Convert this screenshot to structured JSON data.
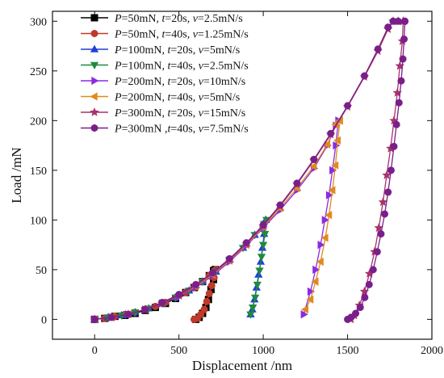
{
  "chart_data": {
    "type": "scatter",
    "xlabel": "Displacement /nm",
    "ylabel": "Load /mN",
    "xlim": [
      -250,
      2000
    ],
    "ylim": [
      -20,
      310
    ],
    "xticks": [
      0,
      500,
      1000,
      1500,
      2000
    ],
    "yticks": [
      0,
      50,
      100,
      150,
      200,
      250,
      300
    ],
    "xtick_labels": [
      "0",
      "500",
      "1000",
      "1500",
      "2000"
    ],
    "ytick_labels": [
      "0",
      "50",
      "100",
      "150",
      "200",
      "250",
      "300"
    ],
    "grid": false,
    "legend_position": "top-left",
    "series": [
      {
        "legend": [
          {
            "t": "P",
            "i": true
          },
          {
            "t": "=50mN,  ",
            "i": false
          },
          {
            "t": "t",
            "i": true
          },
          {
            "t": "=20s,  ",
            "i": false
          },
          {
            "t": "v",
            "i": true
          },
          {
            "t": "=2.5mN/s",
            "i": false
          }
        ],
        "color": "#000000",
        "marker": "square",
        "loading": [
          [
            0,
            0
          ],
          [
            60,
            1
          ],
          [
            120,
            3
          ],
          [
            180,
            4
          ],
          [
            240,
            6
          ],
          [
            300,
            9
          ],
          [
            360,
            12
          ],
          [
            420,
            16
          ],
          [
            480,
            21
          ],
          [
            540,
            27
          ],
          [
            590,
            32
          ],
          [
            640,
            38
          ],
          [
            680,
            44
          ],
          [
            705,
            49
          ],
          [
            715,
            50
          ]
        ],
        "unloading": [
          [
            715,
            50
          ],
          [
            705,
            40
          ],
          [
            690,
            30
          ],
          [
            675,
            20
          ],
          [
            660,
            12
          ],
          [
            640,
            6
          ],
          [
            620,
            2
          ],
          [
            600,
            0
          ]
        ]
      },
      {
        "legend": [
          {
            "t": "P",
            "i": true
          },
          {
            "t": "=50mN,  ",
            "i": false
          },
          {
            "t": "t",
            "i": true
          },
          {
            "t": "=40s,  ",
            "i": false
          },
          {
            "t": "v",
            "i": true
          },
          {
            "t": "=1.25mN/s",
            "i": false
          }
        ],
        "color": "#c0392b",
        "marker": "circle",
        "loading": [
          [
            0,
            0
          ],
          [
            60,
            1
          ],
          [
            120,
            3
          ],
          [
            180,
            5
          ],
          [
            240,
            7
          ],
          [
            300,
            10
          ],
          [
            360,
            13
          ],
          [
            420,
            17
          ],
          [
            480,
            22
          ],
          [
            540,
            27
          ],
          [
            590,
            32
          ],
          [
            640,
            38
          ],
          [
            680,
            44
          ],
          [
            710,
            49
          ],
          [
            720,
            50
          ]
        ],
        "unloading": [
          [
            720,
            50
          ],
          [
            708,
            42
          ],
          [
            694,
            34
          ],
          [
            680,
            26
          ],
          [
            665,
            18
          ],
          [
            650,
            10
          ],
          [
            630,
            5
          ],
          [
            610,
            1
          ],
          [
            590,
            0
          ]
        ]
      },
      {
        "legend": [
          {
            "t": "P",
            "i": true
          },
          {
            "t": "=100mN, ",
            "i": false
          },
          {
            "t": "t",
            "i": true
          },
          {
            "t": "=20s, ",
            "i": false
          },
          {
            "t": "v",
            "i": true
          },
          {
            "t": "=5mN/s",
            "i": false
          }
        ],
        "color": "#1f3fd6",
        "marker": "triangle-up",
        "loading": [
          [
            0,
            0
          ],
          [
            80,
            2
          ],
          [
            160,
            4
          ],
          [
            240,
            7
          ],
          [
            320,
            11
          ],
          [
            400,
            16
          ],
          [
            480,
            22
          ],
          [
            560,
            29
          ],
          [
            640,
            38
          ],
          [
            720,
            48
          ],
          [
            800,
            60
          ],
          [
            880,
            72
          ],
          [
            950,
            85
          ],
          [
            1000,
            96
          ],
          [
            1015,
            100
          ]
        ],
        "unloading": [
          [
            1015,
            100
          ],
          [
            1005,
            86
          ],
          [
            995,
            72
          ],
          [
            985,
            58
          ],
          [
            972,
            45
          ],
          [
            960,
            32
          ],
          [
            948,
            20
          ],
          [
            935,
            10
          ],
          [
            925,
            5
          ]
        ]
      },
      {
        "legend": [
          {
            "t": "P",
            "i": true
          },
          {
            "t": "=100mN, ",
            "i": false
          },
          {
            "t": "t",
            "i": true
          },
          {
            "t": "=40s, ",
            "i": false
          },
          {
            "t": "v",
            "i": true
          },
          {
            "t": "=2.5mN/s",
            "i": false
          }
        ],
        "color": "#1e8a3e",
        "marker": "triangle-down",
        "loading": [
          [
            0,
            0
          ],
          [
            80,
            2
          ],
          [
            160,
            4
          ],
          [
            240,
            7
          ],
          [
            320,
            11
          ],
          [
            400,
            16
          ],
          [
            480,
            22
          ],
          [
            560,
            29
          ],
          [
            640,
            38
          ],
          [
            720,
            48
          ],
          [
            800,
            60
          ],
          [
            880,
            72
          ],
          [
            950,
            85
          ],
          [
            1005,
            96
          ],
          [
            1020,
            100
          ]
        ],
        "unloading": [
          [
            1020,
            100
          ],
          [
            1010,
            86
          ],
          [
            1000,
            75
          ],
          [
            990,
            63
          ],
          [
            978,
            49
          ],
          [
            965,
            35
          ],
          [
            952,
            22
          ],
          [
            938,
            12
          ],
          [
            925,
            5
          ]
        ]
      },
      {
        "legend": [
          {
            "t": "P",
            "i": true
          },
          {
            "t": "=200mN, ",
            "i": false
          },
          {
            "t": "t",
            "i": true
          },
          {
            "t": "=20s, ",
            "i": false
          },
          {
            "t": "v",
            "i": true
          },
          {
            "t": "=10mN/s",
            "i": false
          }
        ],
        "color": "#8a2be2",
        "marker": "triangle-right",
        "loading": [
          [
            0,
            0
          ],
          [
            100,
            2
          ],
          [
            200,
            5
          ],
          [
            300,
            10
          ],
          [
            400,
            16
          ],
          [
            500,
            23
          ],
          [
            600,
            32
          ],
          [
            700,
            44
          ],
          [
            800,
            58
          ],
          [
            900,
            74
          ],
          [
            1000,
            92
          ],
          [
            1100,
            110
          ],
          [
            1200,
            130
          ],
          [
            1300,
            152
          ],
          [
            1380,
            175
          ],
          [
            1430,
            195
          ],
          [
            1445,
            200
          ]
        ],
        "unloading": [
          [
            1445,
            200
          ],
          [
            1430,
            175
          ],
          [
            1410,
            150
          ],
          [
            1390,
            125
          ],
          [
            1365,
            100
          ],
          [
            1340,
            75
          ],
          [
            1310,
            50
          ],
          [
            1280,
            28
          ],
          [
            1240,
            5
          ]
        ]
      },
      {
        "legend": [
          {
            "t": "P",
            "i": true
          },
          {
            "t": "=200mN, ",
            "i": false
          },
          {
            "t": "t",
            "i": true
          },
          {
            "t": "=40s, ",
            "i": false
          },
          {
            "t": "v",
            "i": true
          },
          {
            "t": "=5mN/s",
            "i": false
          }
        ],
        "color": "#e08a1e",
        "marker": "triangle-left",
        "loading": [
          [
            0,
            0
          ],
          [
            100,
            2
          ],
          [
            200,
            5
          ],
          [
            300,
            10
          ],
          [
            400,
            17
          ],
          [
            500,
            24
          ],
          [
            600,
            33
          ],
          [
            700,
            45
          ],
          [
            800,
            59
          ],
          [
            900,
            75
          ],
          [
            1000,
            93
          ],
          [
            1100,
            112
          ],
          [
            1200,
            132
          ],
          [
            1300,
            154
          ],
          [
            1380,
            176
          ],
          [
            1430,
            196
          ],
          [
            1455,
            200
          ]
        ],
        "unloading": [
          [
            1455,
            200
          ],
          [
            1442,
            180
          ],
          [
            1428,
            155
          ],
          [
            1410,
            130
          ],
          [
            1390,
            105
          ],
          [
            1368,
            82
          ],
          [
            1340,
            58
          ],
          [
            1310,
            38
          ],
          [
            1280,
            20
          ],
          [
            1250,
            10
          ]
        ]
      },
      {
        "legend": [
          {
            "t": "P",
            "i": true
          },
          {
            "t": "=300mN, ",
            "i": false
          },
          {
            "t": "t",
            "i": true
          },
          {
            "t": "=20s, ",
            "i": false
          },
          {
            "t": "v",
            "i": true
          },
          {
            "t": "=15mN/s",
            "i": false
          }
        ],
        "color": "#a8326a",
        "marker": "star",
        "loading": [
          [
            0,
            0
          ],
          [
            100,
            2
          ],
          [
            200,
            5
          ],
          [
            300,
            10
          ],
          [
            400,
            16
          ],
          [
            500,
            24
          ],
          [
            600,
            34
          ],
          [
            700,
            46
          ],
          [
            800,
            60
          ],
          [
            900,
            76
          ],
          [
            1000,
            94
          ],
          [
            1100,
            114
          ],
          [
            1200,
            136
          ],
          [
            1300,
            160
          ],
          [
            1400,
            186
          ],
          [
            1500,
            214
          ],
          [
            1600,
            244
          ],
          [
            1680,
            270
          ],
          [
            1740,
            292
          ],
          [
            1770,
            300
          ],
          [
            1800,
            300
          ],
          [
            1830,
            300
          ]
        ],
        "unloading": [
          [
            1830,
            300
          ],
          [
            1825,
            280
          ],
          [
            1810,
            255
          ],
          [
            1795,
            228
          ],
          [
            1775,
            200
          ],
          [
            1755,
            172
          ],
          [
            1732,
            145
          ],
          [
            1710,
            118
          ],
          [
            1685,
            92
          ],
          [
            1660,
            68
          ],
          [
            1630,
            46
          ],
          [
            1600,
            28
          ],
          [
            1570,
            14
          ],
          [
            1540,
            4
          ],
          [
            1520,
            0
          ]
        ]
      },
      {
        "legend": [
          {
            "t": "P",
            "i": true
          },
          {
            "t": "=300mN ,",
            "i": false
          },
          {
            "t": "t",
            "i": true
          },
          {
            "t": "=40s, ",
            "i": false
          },
          {
            "t": "v",
            "i": true
          },
          {
            "t": "=7.5mN/s",
            "i": false
          }
        ],
        "color": "#7a1f8a",
        "marker": "circle",
        "loading": [
          [
            0,
            0
          ],
          [
            100,
            2
          ],
          [
            200,
            5
          ],
          [
            300,
            10
          ],
          [
            400,
            17
          ],
          [
            500,
            25
          ],
          [
            600,
            35
          ],
          [
            700,
            47
          ],
          [
            800,
            61
          ],
          [
            900,
            77
          ],
          [
            1000,
            95
          ],
          [
            1100,
            115
          ],
          [
            1200,
            137
          ],
          [
            1300,
            161
          ],
          [
            1400,
            187
          ],
          [
            1500,
            215
          ],
          [
            1600,
            245
          ],
          [
            1680,
            272
          ],
          [
            1740,
            294
          ],
          [
            1770,
            300
          ],
          [
            1800,
            300
          ],
          [
            1840,
            300
          ]
        ],
        "unloading": [
          [
            1840,
            300
          ],
          [
            1835,
            282
          ],
          [
            1828,
            262
          ],
          [
            1818,
            240
          ],
          [
            1805,
            218
          ],
          [
            1790,
            196
          ],
          [
            1775,
            174
          ],
          [
            1758,
            150
          ],
          [
            1740,
            128
          ],
          [
            1720,
            106
          ],
          [
            1698,
            86
          ],
          [
            1676,
            68
          ],
          [
            1652,
            50
          ],
          [
            1628,
            35
          ],
          [
            1602,
            22
          ],
          [
            1575,
            12
          ],
          [
            1548,
            6
          ],
          [
            1520,
            2
          ],
          [
            1500,
            0
          ]
        ]
      }
    ]
  }
}
